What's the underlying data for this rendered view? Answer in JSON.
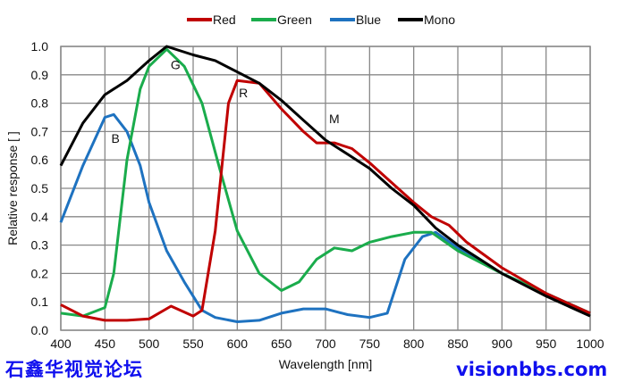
{
  "chart_data": {
    "type": "line",
    "xlabel": "Wavelength [nm]",
    "ylabel": "Relative response [ ]",
    "xlim": [
      400,
      1000
    ],
    "ylim": [
      0,
      1.0
    ],
    "xticks": [
      400,
      450,
      500,
      550,
      600,
      650,
      700,
      750,
      800,
      850,
      900,
      950,
      1000
    ],
    "yticks": [
      "0.0",
      "0.1",
      "0.2",
      "0.3",
      "0.4",
      "0.5",
      "0.6",
      "0.7",
      "0.8",
      "0.9",
      "1.0"
    ],
    "grid": true,
    "legend": "top-center",
    "series": [
      {
        "name": "Red",
        "color": "#c00000",
        "label": "R",
        "label_at": [
          607,
          0.82
        ],
        "x": [
          400,
          425,
          450,
          475,
          500,
          525,
          550,
          560,
          575,
          590,
          600,
          625,
          650,
          675,
          690,
          710,
          730,
          750,
          775,
          800,
          820,
          840,
          860,
          900,
          950,
          1000
        ],
        "y": [
          0.09,
          0.05,
          0.035,
          0.035,
          0.04,
          0.085,
          0.05,
          0.07,
          0.35,
          0.8,
          0.88,
          0.87,
          0.78,
          0.7,
          0.66,
          0.66,
          0.64,
          0.59,
          0.52,
          0.45,
          0.4,
          0.37,
          0.31,
          0.22,
          0.13,
          0.06
        ]
      },
      {
        "name": "Green",
        "color": "#1aac4c",
        "label": "G",
        "label_at": [
          530,
          0.92
        ],
        "x": [
          400,
          425,
          450,
          460,
          475,
          490,
          500,
          520,
          540,
          560,
          580,
          600,
          625,
          650,
          670,
          690,
          710,
          730,
          750,
          775,
          800,
          820,
          850,
          900,
          950,
          1000
        ],
        "y": [
          0.06,
          0.05,
          0.08,
          0.2,
          0.6,
          0.85,
          0.93,
          0.99,
          0.93,
          0.8,
          0.57,
          0.35,
          0.2,
          0.14,
          0.17,
          0.25,
          0.29,
          0.28,
          0.31,
          0.33,
          0.345,
          0.345,
          0.28,
          0.2,
          0.13,
          0.06
        ]
      },
      {
        "name": "Blue",
        "color": "#1e72c0",
        "label": "B",
        "label_at": [
          462,
          0.66
        ],
        "x": [
          400,
          425,
          450,
          460,
          475,
          490,
          500,
          520,
          540,
          560,
          575,
          600,
          625,
          650,
          675,
          700,
          725,
          750,
          770,
          790,
          810,
          825,
          850,
          900,
          950,
          1000
        ],
        "y": [
          0.38,
          0.58,
          0.75,
          0.76,
          0.7,
          0.58,
          0.45,
          0.28,
          0.17,
          0.07,
          0.045,
          0.03,
          0.035,
          0.06,
          0.075,
          0.075,
          0.055,
          0.045,
          0.06,
          0.25,
          0.33,
          0.345,
          0.29,
          0.2,
          0.13,
          0.06
        ]
      },
      {
        "name": "Mono",
        "color": "#000000",
        "label": "M",
        "label_at": [
          710,
          0.73
        ],
        "x": [
          400,
          425,
          450,
          475,
          500,
          520,
          550,
          575,
          600,
          625,
          650,
          675,
          700,
          725,
          750,
          775,
          800,
          825,
          850,
          875,
          900,
          950,
          1000
        ],
        "y": [
          0.58,
          0.73,
          0.83,
          0.88,
          0.95,
          1.0,
          0.97,
          0.95,
          0.91,
          0.87,
          0.81,
          0.74,
          0.67,
          0.62,
          0.57,
          0.5,
          0.44,
          0.36,
          0.3,
          0.25,
          0.2,
          0.12,
          0.05
        ]
      }
    ]
  },
  "watermark": {
    "line1": "石鑫华视觉论坛",
    "line2": "visionbbs.com"
  }
}
